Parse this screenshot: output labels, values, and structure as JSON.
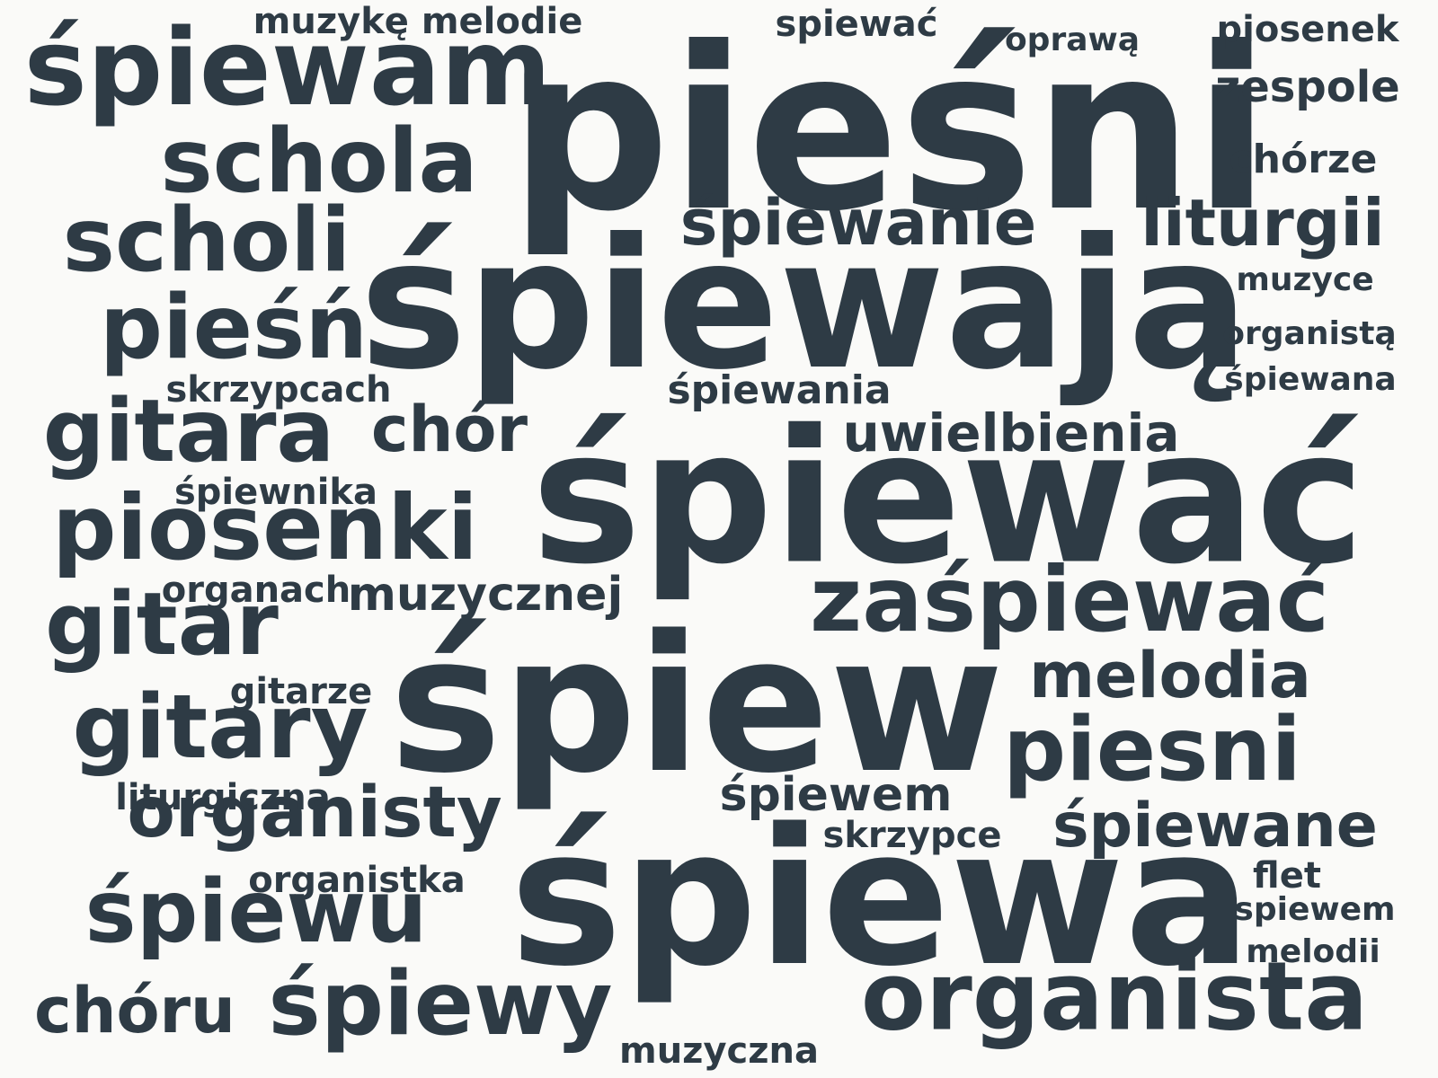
{
  "colors": {
    "text": "#2e3b45",
    "background": "#fafaf8"
  },
  "words": {
    "w01": "pieśni",
    "w02": "śpiewają",
    "w03": "śpiewać",
    "w04": "śpiew",
    "w05": "śpiewa",
    "w06": "śpiewam",
    "w07": "schola",
    "w08": "scholi",
    "w09": "pieśń",
    "w10": "gitara",
    "w11": "chór",
    "w12": "piosenki",
    "w13": "gitar",
    "w14": "gitary",
    "w15": "organisty",
    "w16": "śpiewu",
    "w17": "chóru",
    "w18": "śpiewy",
    "w19": "organista",
    "w20": "zaśpiewać",
    "w21": "melodia",
    "w22": "piesni",
    "w23": "śpiewane",
    "w24": "śpiewanie",
    "w25": "liturgii",
    "w26": "uwielbienia",
    "w27": "śpiewem",
    "w28": "muzykę melodie",
    "w29": "spiewać",
    "w30": "oprawą",
    "w31": "piosenek",
    "w32": "zespole",
    "w33": "chórze",
    "w34": "muzyce",
    "w35": "organistą",
    "w36": "śpiewana",
    "w37": "skrzypcach",
    "w38": "śpiewania",
    "w39": "śpiewnika",
    "w40": "organach",
    "w41": "muzycznej",
    "w42": "gitarze",
    "w43": "liturgiczna",
    "w44": "skrzypce",
    "w45": "organistka",
    "w46": "flet",
    "w47": "spiewem",
    "w48": "melodii",
    "w49": "muzyczna"
  }
}
